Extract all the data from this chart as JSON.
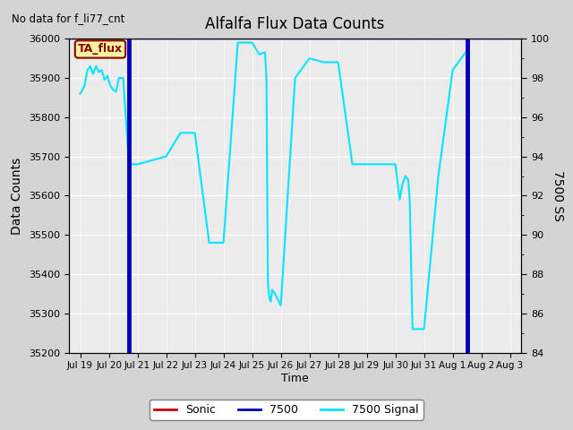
{
  "title": "Alfalfa Flux Data Counts",
  "subtitle": "No data for f_li77_cnt",
  "xlabel": "Time",
  "ylabel": "Data Counts",
  "ylabel2": "7500 SS",
  "ta_flux_label": "TA_flux",
  "ylim": [
    35200,
    36000
  ],
  "ylim2": [
    84,
    100
  ],
  "plot_bg_color": "#ebebeb",
  "fig_bg_color": "#d4d4d4",
  "x_tick_labels": [
    "Jul 19",
    "Jul 20",
    "Jul 21",
    "Jul 22",
    "Jul 23",
    "Jul 24",
    "Jul 25",
    "Jul 26",
    "Jul 27",
    "Jul 28",
    "Jul 29",
    "Jul 30",
    "Jul 31",
    "Aug 1",
    "Aug 2",
    "Aug 3"
  ],
  "cyan_x": [
    0.0,
    0.15,
    0.25,
    0.35,
    0.45,
    0.55,
    0.65,
    0.75,
    0.85,
    0.95,
    1.05,
    1.15,
    1.25,
    1.35,
    1.5,
    1.7,
    2.0,
    3.0,
    3.5,
    4.0,
    4.5,
    5.0,
    5.5,
    6.0,
    6.25,
    6.35,
    6.45,
    6.5,
    6.55,
    6.6,
    6.65,
    6.7,
    6.8,
    7.0,
    7.5,
    8.0,
    8.5,
    9.0,
    9.5,
    10.0,
    10.5,
    11.0,
    11.15,
    11.25,
    11.35,
    11.45,
    11.5,
    11.6,
    12.0,
    12.5,
    13.0,
    13.5
  ],
  "cyan_y": [
    35860,
    35880,
    35920,
    35930,
    35910,
    35930,
    35915,
    35920,
    35895,
    35905,
    35880,
    35870,
    35865,
    35900,
    35900,
    35680,
    35680,
    35700,
    35760,
    35760,
    35480,
    35480,
    35990,
    35990,
    35960,
    35963,
    35965,
    35900,
    35380,
    35340,
    35330,
    35360,
    35350,
    35320,
    35900,
    35950,
    35940,
    35940,
    35680,
    35680,
    35680,
    35680,
    35590,
    35630,
    35650,
    35640,
    35590,
    35260,
    35260,
    35650,
    35920,
    35970
  ],
  "blue_vline1": 1.7,
  "blue_vline2": 13.5,
  "blue_vline_color": "#0000bb",
  "cyan_color": "#00e5ff",
  "legend_sonic_color": "#cc0000",
  "legend_7500_color": "#0000bb",
  "legend_signal_color": "#00e5ff"
}
